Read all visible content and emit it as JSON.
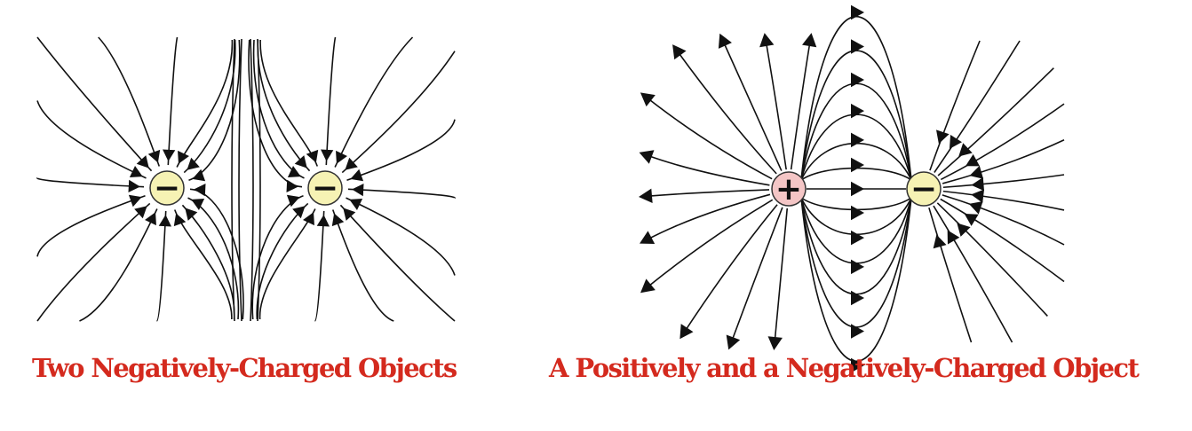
{
  "diagrams": [
    {
      "caption": "Two Negatively-Charged Objects",
      "charges": [
        {
          "sign": "−",
          "type": "negative",
          "fill": "#f6f2b4"
        },
        {
          "sign": "−",
          "type": "negative",
          "fill": "#f6f2b4"
        }
      ]
    },
    {
      "caption": "A Positively and a Negatively-Charged Object",
      "charges": [
        {
          "sign": "+",
          "type": "positive",
          "fill": "#f4c6c6"
        },
        {
          "sign": "−",
          "type": "negative",
          "fill": "#f6f2b4"
        }
      ]
    }
  ],
  "colors": {
    "caption": "#d42a1e",
    "field_line": "#111111",
    "charge_stroke": "#333333"
  }
}
